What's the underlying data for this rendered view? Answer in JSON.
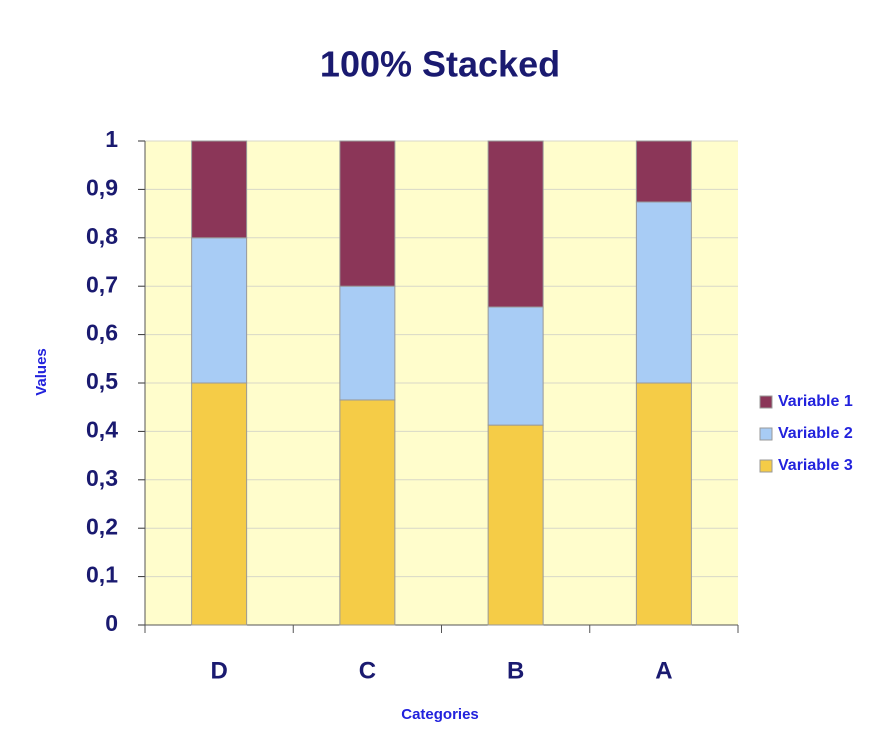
{
  "chart_data": {
    "type": "stacked_bar_100",
    "title": "100% Stacked",
    "x_label": "Categories",
    "y_label": "Values",
    "categories": [
      "D",
      "C",
      "B",
      "A"
    ],
    "series": [
      {
        "name": "Variable 3",
        "color": "#f5cc47",
        "values": [
          0.5,
          0.465,
          0.413,
          0.5
        ]
      },
      {
        "name": "Variable 2",
        "color": "#a8ccf5",
        "values": [
          0.3,
          0.235,
          0.244,
          0.374
        ]
      },
      {
        "name": "Variable 1",
        "color": "#8b3658",
        "values": [
          0.2,
          0.3,
          0.343,
          0.126
        ]
      }
    ],
    "ylim": [
      0,
      1
    ],
    "yticks": [
      0,
      {
        "value": 0.1,
        "label": "0,1"
      },
      {
        "value": 0.2,
        "label": "0,2"
      },
      {
        "value": 0.3,
        "label": "0,3"
      },
      {
        "value": 0.4,
        "label": "0,4"
      },
      {
        "value": 0.5,
        "label": "0,5"
      },
      {
        "value": 0.6,
        "label": "0,6"
      },
      {
        "value": 0.7,
        "label": "0,7"
      },
      {
        "value": 0.8,
        "label": "0,8"
      },
      {
        "value": 0.9,
        "label": "0,9"
      },
      1
    ],
    "grid": true,
    "legend": "right"
  }
}
